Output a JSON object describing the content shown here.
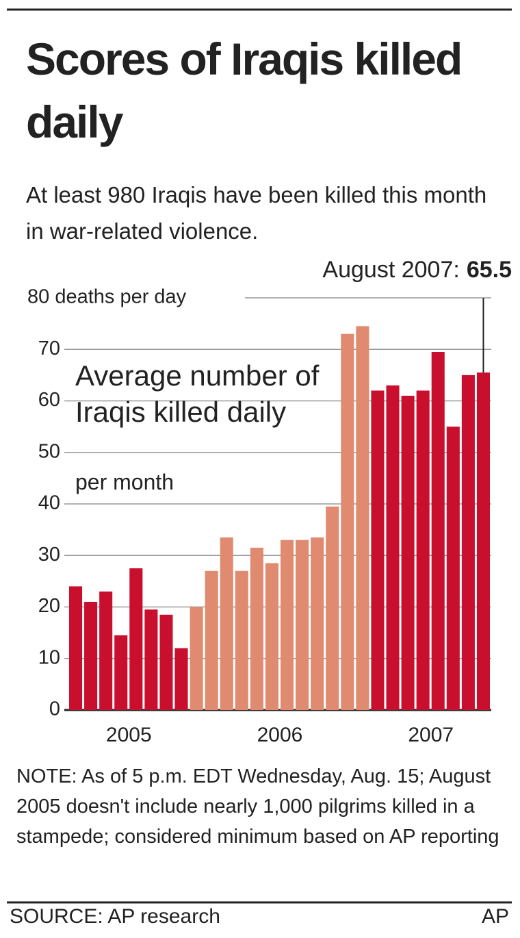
{
  "chart_data": {
    "type": "bar",
    "title": "Scores of Iraqis killed daily",
    "subtitle": "At least 980 Iraqis have been killed this month in war-related violence.",
    "label": "Average number of Iraqis killed daily",
    "sublabel": "per month",
    "annotation": "August 2007:",
    "series": [
      {
        "name": "2005",
        "color": "#c8102e",
        "values": [
          24,
          21,
          23,
          14.5,
          27.5,
          19.5,
          18.5,
          12
        ]
      },
      {
        "name": "2006",
        "color": "#e08a70",
        "values": [
          20,
          27,
          33.5,
          27,
          31.5,
          28.5,
          33,
          33,
          33.5,
          39.5,
          73,
          74.5
        ]
      },
      {
        "name": "2007",
        "color": "#c8102e",
        "values": [
          62,
          63,
          61,
          62,
          69.5,
          55,
          65,
          65.5
        ]
      }
    ],
    "ylim": [
      0,
      80
    ],
    "yticks": [
      0,
      10,
      20,
      30,
      40,
      50,
      60,
      70,
      {
        "value": 80,
        "label": "80 deaths per day"
      }
    ],
    "grid": true,
    "note": "NOTE: As of 5 p.m. EDT Wednesday, Aug. 15; August 2005 doesn't include nearly 1,000 pilgrims killed in a stampede; considered minimum based on AP reporting",
    "source": "SOURCE: AP research",
    "credit": "AP"
  }
}
